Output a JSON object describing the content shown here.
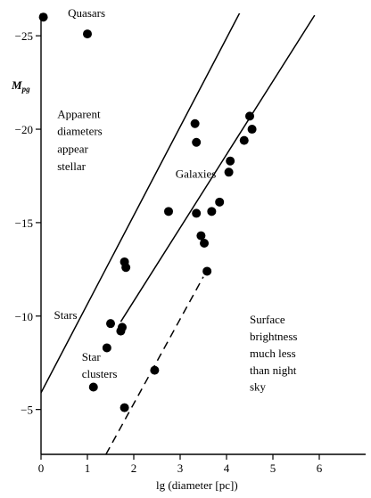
{
  "chart_data": {
    "type": "scatter",
    "xlabel": "lg (diameter [pc])",
    "ylabel": "M",
    "ylabel_subscript": "pg",
    "xlim": [
      0,
      7.0
    ],
    "ylim": [
      -2.6,
      -26.2
    ],
    "x_ticks": [
      0,
      1,
      2,
      3,
      4,
      5,
      6
    ],
    "y_ticks": [
      -25,
      -20,
      -15,
      -10,
      -5
    ],
    "x_tick_labels": [
      "0",
      "1",
      "2",
      "3",
      "4",
      "5",
      "6"
    ],
    "y_tick_labels": [
      "-25",
      "-20",
      "-15",
      "-10",
      "-5"
    ],
    "grid": false,
    "points": [
      {
        "x": 0.05,
        "y": -26.0
      },
      {
        "x": 1.0,
        "y": -25.1
      },
      {
        "x": 3.32,
        "y": -20.3
      },
      {
        "x": 3.35,
        "y": -19.3
      },
      {
        "x": 4.5,
        "y": -20.7
      },
      {
        "x": 4.55,
        "y": -20.0
      },
      {
        "x": 4.38,
        "y": -19.4
      },
      {
        "x": 4.08,
        "y": -18.3
      },
      {
        "x": 4.05,
        "y": -17.7
      },
      {
        "x": 3.85,
        "y": -16.1
      },
      {
        "x": 3.68,
        "y": -15.6
      },
      {
        "x": 2.75,
        "y": -15.6
      },
      {
        "x": 3.35,
        "y": -15.5
      },
      {
        "x": 3.45,
        "y": -14.3
      },
      {
        "x": 3.52,
        "y": -13.9
      },
      {
        "x": 3.58,
        "y": -12.4
      },
      {
        "x": 1.8,
        "y": -12.9
      },
      {
        "x": 1.83,
        "y": -12.6
      },
      {
        "x": 1.5,
        "y": -9.6
      },
      {
        "x": 1.75,
        "y": -9.4
      },
      {
        "x": 1.72,
        "y": -9.2
      },
      {
        "x": 1.42,
        "y": -8.3
      },
      {
        "x": 1.13,
        "y": -6.2
      },
      {
        "x": 2.45,
        "y": -7.1
      },
      {
        "x": 1.8,
        "y": -5.1
      }
    ],
    "lines": [
      {
        "style": "solid",
        "x": [
          -0.02,
          4.3
        ],
        "y": [
          -5.8,
          -26.3
        ]
      },
      {
        "style": "solid",
        "x": [
          1.72,
          5.9
        ],
        "y": [
          -9.7,
          -26.1
        ]
      },
      {
        "style": "dashed",
        "x": [
          1.4,
          3.5
        ],
        "y": [
          -2.6,
          -12.1
        ]
      }
    ],
    "annotations": [
      {
        "text": "Quasars",
        "x": 0.58,
        "y": -26.0
      },
      {
        "text": "Apparent",
        "x": 0.35,
        "y": -20.6
      },
      {
        "text": "diameters",
        "x": 0.35,
        "y": -19.7
      },
      {
        "text": "appear",
        "x": 0.35,
        "y": -18.75
      },
      {
        "text": "stellar",
        "x": 0.35,
        "y": -17.8
      },
      {
        "text": "Galaxies",
        "x": 2.9,
        "y": -17.4
      },
      {
        "text": "Stars",
        "x": 0.28,
        "y": -9.85
      },
      {
        "text": "Star",
        "x": 0.88,
        "y": -7.6
      },
      {
        "text": "clusters",
        "x": 0.88,
        "y": -6.7
      },
      {
        "text": "Surface",
        "x": 4.5,
        "y": -9.6
      },
      {
        "text": "brightness",
        "x": 4.5,
        "y": -8.7
      },
      {
        "text": "much less",
        "x": 4.5,
        "y": -7.8
      },
      {
        "text": "than night",
        "x": 4.5,
        "y": -6.9
      },
      {
        "text": "sky",
        "x": 4.5,
        "y": -6.0
      }
    ]
  }
}
